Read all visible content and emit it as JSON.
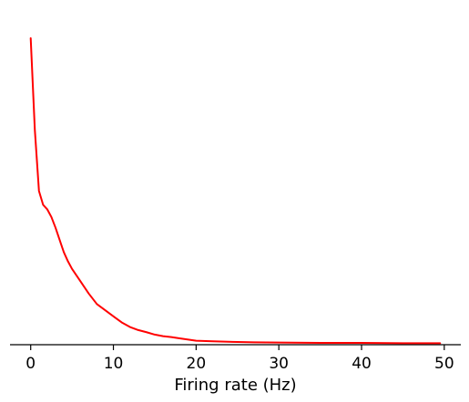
{
  "chart_data": {
    "type": "line",
    "title": "",
    "xlabel": "Firing rate (Hz)",
    "ylabel": "",
    "xlim": [
      -2.5,
      52
    ],
    "ylim": [
      0,
      1
    ],
    "xticks": [
      0,
      10,
      20,
      30,
      40,
      50
    ],
    "xtick_labels": [
      "0",
      "10",
      "20",
      "30",
      "40",
      "50"
    ],
    "yticks_visible": false,
    "grid": false,
    "legend": "none",
    "spines": {
      "left": false,
      "top": false,
      "right": false,
      "bottom": true
    },
    "series": [
      {
        "color": "#ff0000",
        "x": [
          0,
          0.5,
          1,
          1.5,
          2,
          2.5,
          3,
          3.5,
          4,
          4.5,
          5,
          6,
          7,
          8,
          9,
          10,
          11,
          12,
          13,
          14,
          15,
          16,
          17,
          18,
          20,
          22,
          25,
          27,
          30,
          35,
          40,
          45,
          49.5
        ],
        "y": [
          1.0,
          0.7,
          0.5,
          0.455,
          0.44,
          0.415,
          0.38,
          0.34,
          0.3,
          0.27,
          0.245,
          0.205,
          0.165,
          0.13,
          0.11,
          0.09,
          0.07,
          0.055,
          0.045,
          0.038,
          0.03,
          0.025,
          0.022,
          0.018,
          0.01,
          0.008,
          0.006,
          0.005,
          0.004,
          0.003,
          0.003,
          0.002,
          0.002
        ]
      }
    ]
  }
}
